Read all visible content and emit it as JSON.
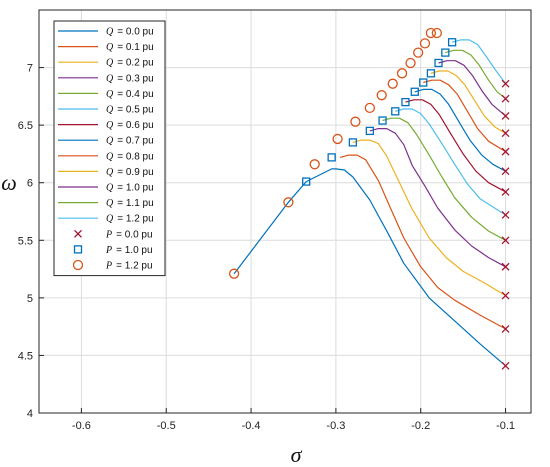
{
  "chart_data": {
    "type": "line",
    "xlabel": "σ",
    "ylabel": "ω",
    "xlim": [
      -0.65,
      -0.07
    ],
    "ylim": [
      4,
      7.5
    ],
    "x_ticks": [
      -0.6,
      -0.5,
      -0.4,
      -0.3,
      -0.2,
      -0.1
    ],
    "x_tick_labels": [
      "-0.6",
      "-0.5",
      "-0.4",
      "-0.3",
      "-0.2",
      "-0.1"
    ],
    "y_ticks": [
      4,
      4.5,
      5,
      5.5,
      6,
      6.5,
      7
    ],
    "y_tick_labels": [
      "4",
      "4.5",
      "5",
      "5.5",
      "6",
      "6.5",
      "7"
    ],
    "grid": true,
    "legend_position": "top-left",
    "series": [
      {
        "name": "Q = 0.0 pu",
        "symbol": "Q",
        "value_text": "= 0.0 pu",
        "color": "#0072BD",
        "x": [
          -0.42,
          -0.356,
          -0.335,
          -0.305,
          -0.3,
          -0.29,
          -0.28,
          -0.26,
          -0.24,
          -0.22,
          -0.19,
          -0.16,
          -0.13,
          -0.1
        ],
        "y": [
          5.21,
          5.83,
          6.01,
          6.12,
          6.12,
          6.11,
          6.05,
          5.85,
          5.58,
          5.3,
          5.0,
          4.8,
          4.6,
          4.41
        ]
      },
      {
        "name": "Q = 0.1 pu",
        "symbol": "Q",
        "value_text": "= 0.1 pu",
        "color": "#D95319",
        "x": [
          -0.295,
          -0.285,
          -0.275,
          -0.265,
          -0.25,
          -0.235,
          -0.22,
          -0.2,
          -0.18,
          -0.16,
          -0.13,
          -0.1
        ],
        "y": [
          6.22,
          6.24,
          6.24,
          6.2,
          6.02,
          5.77,
          5.52,
          5.27,
          5.09,
          4.98,
          4.85,
          4.73
        ]
      },
      {
        "name": "Q = 0.2 pu",
        "symbol": "Q",
        "value_text": "= 0.2 pu",
        "color": "#EDB120",
        "x": [
          -0.28,
          -0.27,
          -0.26,
          -0.25,
          -0.24,
          -0.225,
          -0.21,
          -0.19,
          -0.17,
          -0.15,
          -0.125,
          -0.1
        ],
        "y": [
          6.35,
          6.37,
          6.37,
          6.34,
          6.23,
          6.0,
          5.77,
          5.52,
          5.35,
          5.23,
          5.13,
          5.02
        ]
      },
      {
        "name": "Q = 0.3 pu",
        "symbol": "Q",
        "value_text": "= 0.3 pu",
        "color": "#7E2F8E",
        "x": [
          -0.26,
          -0.25,
          -0.24,
          -0.23,
          -0.22,
          -0.21,
          -0.195,
          -0.18,
          -0.16,
          -0.14,
          -0.12,
          -0.1
        ],
        "y": [
          6.45,
          6.47,
          6.47,
          6.43,
          6.33,
          6.15,
          5.97,
          5.78,
          5.59,
          5.45,
          5.35,
          5.27
        ]
      },
      {
        "name": "Q = 0.4 pu",
        "symbol": "Q",
        "value_text": "= 0.4 pu",
        "color": "#77AC30",
        "x": [
          -0.245,
          -0.235,
          -0.225,
          -0.215,
          -0.205,
          -0.19,
          -0.175,
          -0.16,
          -0.14,
          -0.12,
          -0.1
        ],
        "y": [
          6.54,
          6.56,
          6.56,
          6.52,
          6.42,
          6.24,
          6.05,
          5.87,
          5.7,
          5.58,
          5.5
        ]
      },
      {
        "name": "Q = 0.5 pu",
        "symbol": "Q",
        "value_text": "= 0.5 pu",
        "color": "#4DBEEE",
        "x": [
          -0.23,
          -0.22,
          -0.21,
          -0.2,
          -0.19,
          -0.175,
          -0.16,
          -0.145,
          -0.13,
          -0.115,
          -0.1
        ],
        "y": [
          6.62,
          6.64,
          6.64,
          6.6,
          6.51,
          6.34,
          6.16,
          5.99,
          5.86,
          5.79,
          5.72
        ]
      },
      {
        "name": "Q = 0.6 pu",
        "symbol": "Q",
        "value_text": "= 0.6 pu",
        "color": "#A2142F",
        "x": [
          -0.218,
          -0.208,
          -0.198,
          -0.188,
          -0.178,
          -0.165,
          -0.15,
          -0.135,
          -0.12,
          -0.11,
          -0.1
        ],
        "y": [
          6.7,
          6.72,
          6.72,
          6.68,
          6.59,
          6.43,
          6.25,
          6.1,
          6.0,
          5.96,
          5.92
        ]
      },
      {
        "name": "Q = 0.7 pu",
        "symbol": "Q",
        "value_text": "= 0.7 pu",
        "color": "#0072BD",
        "x": [
          -0.207,
          -0.197,
          -0.187,
          -0.177,
          -0.167,
          -0.155,
          -0.142,
          -0.128,
          -0.115,
          -0.1
        ],
        "y": [
          6.79,
          6.81,
          6.81,
          6.77,
          6.68,
          6.53,
          6.37,
          6.24,
          6.16,
          6.1
        ]
      },
      {
        "name": "Q = 0.8 pu",
        "symbol": "Q",
        "value_text": "= 0.8 pu",
        "color": "#D95319",
        "x": [
          -0.197,
          -0.187,
          -0.177,
          -0.167,
          -0.157,
          -0.145,
          -0.133,
          -0.12,
          -0.1
        ],
        "y": [
          6.87,
          6.89,
          6.89,
          6.85,
          6.77,
          6.62,
          6.47,
          6.36,
          6.27
        ]
      },
      {
        "name": "Q = 0.9 pu",
        "symbol": "Q",
        "value_text": "= 0.9 pu",
        "color": "#EDB120",
        "x": [
          -0.188,
          -0.178,
          -0.168,
          -0.158,
          -0.148,
          -0.137,
          -0.125,
          -0.112,
          -0.1
        ],
        "y": [
          6.95,
          6.97,
          6.97,
          6.93,
          6.85,
          6.72,
          6.58,
          6.48,
          6.43
        ]
      },
      {
        "name": "Q = 1.0 pu",
        "symbol": "Q",
        "value_text": "= 1.0 pu",
        "color": "#7E2F8E",
        "x": [
          -0.179,
          -0.169,
          -0.159,
          -0.149,
          -0.139,
          -0.128,
          -0.116,
          -0.1
        ],
        "y": [
          7.04,
          7.06,
          7.06,
          7.02,
          6.93,
          6.8,
          6.68,
          6.58
        ]
      },
      {
        "name": "Q = 1.1 pu",
        "symbol": "Q",
        "value_text": "= 1.1 pu",
        "color": "#77AC30",
        "x": [
          -0.171,
          -0.161,
          -0.151,
          -0.141,
          -0.131,
          -0.12,
          -0.11,
          -0.1
        ],
        "y": [
          7.13,
          7.15,
          7.15,
          7.11,
          7.02,
          6.89,
          6.79,
          6.73
        ]
      },
      {
        "name": "Q = 1.2 pu",
        "symbol": "Q",
        "value_text": "= 1.2 pu",
        "color": "#4DBEEE",
        "x": [
          -0.163,
          -0.153,
          -0.143,
          -0.133,
          -0.123,
          -0.112,
          -0.1
        ],
        "y": [
          7.22,
          7.24,
          7.24,
          7.2,
          7.1,
          6.98,
          6.86
        ]
      }
    ],
    "marker_series": [
      {
        "name": "P = 0.0 pu",
        "symbol": "P",
        "value_text": "= 0.0 pu",
        "marker": "x",
        "color": "#A2142F",
        "x": [
          -0.1,
          -0.1,
          -0.1,
          -0.1,
          -0.1,
          -0.1,
          -0.1,
          -0.1,
          -0.1,
          -0.1,
          -0.1,
          -0.1,
          -0.1
        ],
        "y": [
          4.41,
          4.73,
          5.02,
          5.27,
          5.5,
          5.72,
          5.92,
          6.1,
          6.27,
          6.43,
          6.58,
          6.73,
          6.86
        ]
      },
      {
        "name": "P = 1.0 pu",
        "symbol": "P",
        "value_text": "= 1.0 pu",
        "marker": "square",
        "color": "#0072BD",
        "x": [
          -0.335,
          -0.305,
          -0.28,
          -0.26,
          -0.245,
          -0.23,
          -0.218,
          -0.207,
          -0.197,
          -0.188,
          -0.179,
          -0.171,
          -0.163
        ],
        "y": [
          6.01,
          6.22,
          6.35,
          6.45,
          6.54,
          6.62,
          6.7,
          6.79,
          6.87,
          6.95,
          7.04,
          7.13,
          7.22
        ]
      },
      {
        "name": "P = 1.2 pu",
        "symbol": "P",
        "value_text": "= 1.2 pu",
        "marker": "circle",
        "color": "#D95319",
        "x": [
          -0.42,
          -0.356,
          -0.325,
          -0.298,
          -0.277,
          -0.26,
          -0.246,
          -0.233,
          -0.222,
          -0.212,
          -0.203,
          -0.195,
          -0.188,
          -0.181
        ],
        "y": [
          5.21,
          5.83,
          6.16,
          6.38,
          6.53,
          6.65,
          6.76,
          6.86,
          6.95,
          7.04,
          7.13,
          7.21,
          7.3,
          7.3
        ]
      }
    ]
  }
}
